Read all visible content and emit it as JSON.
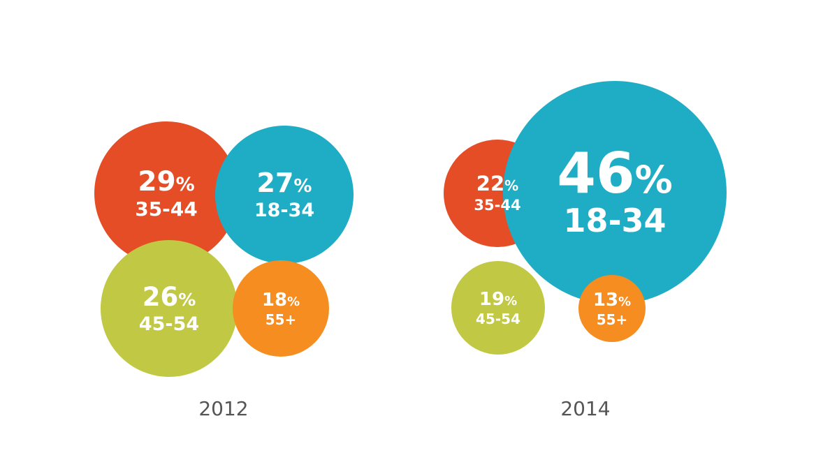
{
  "colors": {
    "age_35_44": "#e44d26",
    "age_18_34": "#1ead c4",
    "age_45_54": "#c1c843",
    "age_55_plus": "#f68d21",
    "label_text": "#ffffff",
    "year_text": "#555555"
  },
  "chart_data": [
    {
      "type": "bubble",
      "title": "2012",
      "unit": "%",
      "series": [
        {
          "label": "35-44",
          "value": 29,
          "color_key": "age_35_44"
        },
        {
          "label": "18-34",
          "value": 27,
          "color_key": "age_18_34"
        },
        {
          "label": "45-54",
          "value": 26,
          "color_key": "age_45_54"
        },
        {
          "label": "55+",
          "value": 18,
          "color_key": "age_55_plus"
        }
      ]
    },
    {
      "type": "bubble",
      "title": "2014",
      "unit": "%",
      "series": [
        {
          "label": "35-44",
          "value": 22,
          "color_key": "age_35_44"
        },
        {
          "label": "18-34",
          "value": 46,
          "color_key": "age_18_34"
        },
        {
          "label": "45-54",
          "value": 19,
          "color_key": "age_45_54"
        },
        {
          "label": "55+",
          "value": 13,
          "color_key": "age_55_plus"
        }
      ]
    }
  ]
}
